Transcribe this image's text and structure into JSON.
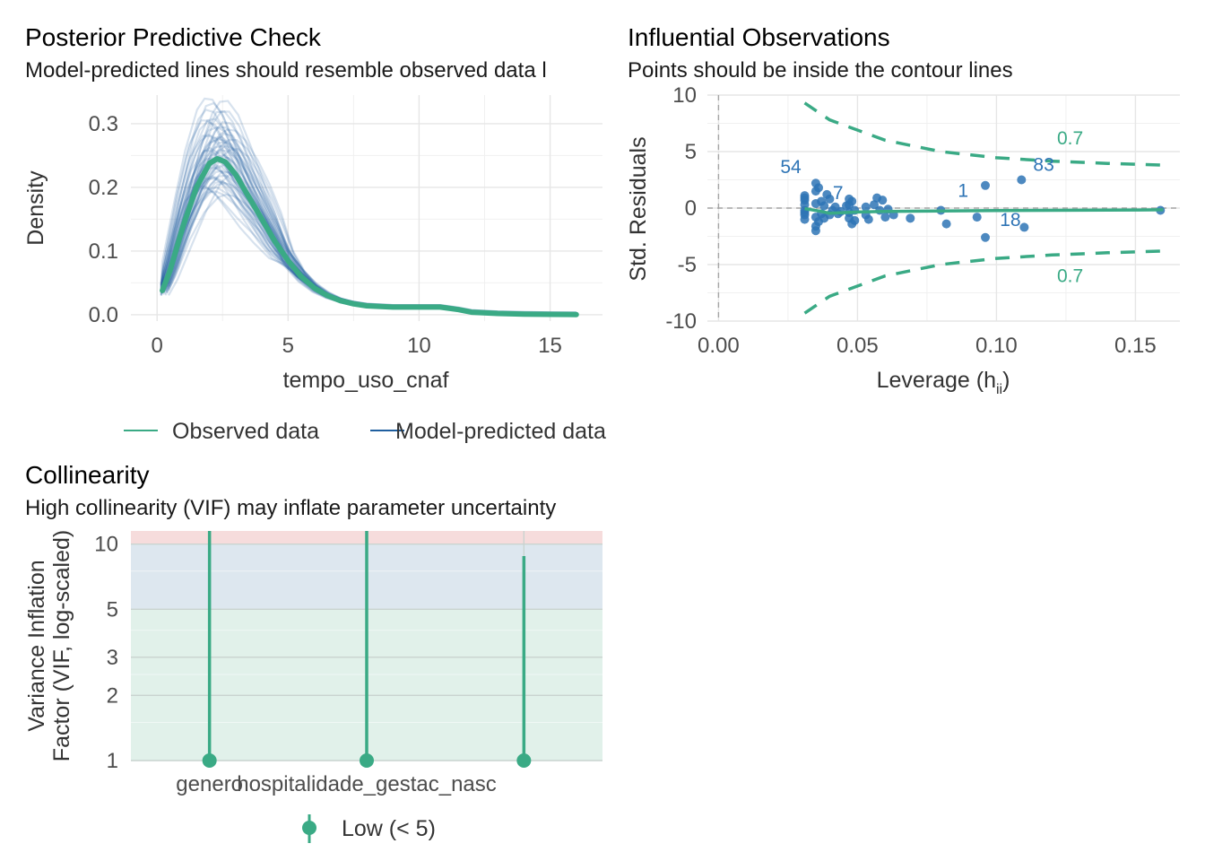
{
  "colors": {
    "observed": "#3aaa85",
    "predicted": "#1f5f9f",
    "point": "#2e74b5",
    "contour": "#3aaa85",
    "zone_high": "#f6dcdc",
    "zone_moderate": "#dde7ef",
    "zone_low": "#e1f1ea"
  },
  "panels": {
    "ppc": {
      "title": "Posterior Predictive Check",
      "subtitle": "Model-predicted lines should resemble observed data l"
    },
    "influence": {
      "title": "Influential Observations",
      "subtitle": "Points should be inside the contour lines"
    },
    "collinearity": {
      "title": "Collinearity",
      "subtitle": "High collinearity (VIF) may inflate parameter uncertainty"
    }
  },
  "chart_data": [
    {
      "type": "line",
      "xlabel": "tempo_uso_cnaf",
      "ylabel": "Density",
      "xlim": [
        -1,
        17
      ],
      "ylim": [
        -0.01,
        0.345
      ],
      "x_ticks": [
        0,
        5,
        10,
        15
      ],
      "x_tick_labels": [
        "0",
        "5",
        "10",
        "15"
      ],
      "y_ticks": [
        0.0,
        0.1,
        0.2,
        0.3
      ],
      "y_tick_labels": [
        "0.0",
        "0.1",
        "0.2",
        "0.3"
      ],
      "legend": [
        "Observed data",
        "Model-predicted data"
      ],
      "legend_position": "bottom",
      "observed": {
        "x": [
          0.2,
          0.5,
          1.0,
          1.5,
          2.0,
          2.3,
          2.6,
          3.0,
          3.5,
          4.0,
          4.5,
          5.0,
          5.5,
          6.0,
          6.5,
          7.0,
          7.5,
          8.0,
          9.0,
          10.0,
          10.8,
          11.5,
          12.0,
          13.0,
          14.0,
          15.0,
          16.0
        ],
        "y": [
          0.038,
          0.07,
          0.14,
          0.2,
          0.238,
          0.245,
          0.24,
          0.22,
          0.185,
          0.15,
          0.115,
          0.085,
          0.06,
          0.042,
          0.03,
          0.022,
          0.017,
          0.014,
          0.012,
          0.012,
          0.012,
          0.008,
          0.004,
          0.002,
          0.001,
          0.0005,
          0.0003
        ]
      },
      "predicted_draws": 50
    },
    {
      "type": "scatter",
      "xlabel": "Leverage (h",
      "xlabel_sub": "ii",
      "xlabel_close": ")",
      "ylabel": "Std. Residuals",
      "xlim": [
        -0.004,
        0.166
      ],
      "ylim": [
        -10,
        10
      ],
      "x_ticks": [
        0.0,
        0.05,
        0.1,
        0.15
      ],
      "x_tick_labels": [
        "0.00",
        "0.05",
        "0.10",
        "0.15"
      ],
      "y_ticks": [
        -10,
        -5,
        0,
        5,
        10
      ],
      "y_tick_labels": [
        "-10",
        "-5",
        "0",
        "5",
        "10"
      ],
      "contour_label": "0.7",
      "contour_upper": {
        "x": [
          0.031,
          0.04,
          0.06,
          0.08,
          0.1,
          0.12,
          0.14,
          0.16
        ],
        "y": [
          9.3,
          7.8,
          6.0,
          5.0,
          4.45,
          4.15,
          3.95,
          3.8
        ]
      },
      "contour_lower": {
        "x": [
          0.031,
          0.04,
          0.06,
          0.08,
          0.1,
          0.12,
          0.14,
          0.16
        ],
        "y": [
          -9.3,
          -7.8,
          -6.0,
          -5.0,
          -4.45,
          -4.15,
          -3.95,
          -3.8
        ]
      },
      "smooth": {
        "x": [
          0.031,
          0.036,
          0.04,
          0.05,
          0.06,
          0.08,
          0.1,
          0.12,
          0.14,
          0.16
        ],
        "y": [
          -0.05,
          -0.25,
          -0.45,
          -0.35,
          -0.3,
          -0.25,
          -0.22,
          -0.2,
          -0.18,
          -0.15
        ]
      },
      "points": [
        {
          "x": 0.031,
          "y": 1.1
        },
        {
          "x": 0.031,
          "y": 0.7
        },
        {
          "x": 0.031,
          "y": 0.3
        },
        {
          "x": 0.031,
          "y": -0.2
        },
        {
          "x": 0.031,
          "y": -0.6
        },
        {
          "x": 0.031,
          "y": -1.0
        },
        {
          "x": 0.031,
          "y": 0.9
        },
        {
          "x": 0.031,
          "y": -0.4
        },
        {
          "x": 0.035,
          "y": 2.2
        },
        {
          "x": 0.035,
          "y": 1.5
        },
        {
          "x": 0.035,
          "y": 0.4
        },
        {
          "x": 0.035,
          "y": -0.8
        },
        {
          "x": 0.035,
          "y": -1.6
        },
        {
          "x": 0.035,
          "y": -2.0
        },
        {
          "x": 0.036,
          "y": 1.8
        },
        {
          "x": 0.036,
          "y": -1.2
        },
        {
          "x": 0.037,
          "y": 0.6
        },
        {
          "x": 0.037,
          "y": -0.5
        },
        {
          "x": 0.038,
          "y": 0.2
        },
        {
          "x": 0.038,
          "y": -0.9
        },
        {
          "x": 0.039,
          "y": 1.2
        },
        {
          "x": 0.04,
          "y": 0.8
        },
        {
          "x": 0.04,
          "y": -0.6
        },
        {
          "x": 0.041,
          "y": -0.2
        },
        {
          "x": 0.042,
          "y": 0.1
        },
        {
          "x": 0.043,
          "y": -0.5
        },
        {
          "x": 0.044,
          "y": -0.3
        },
        {
          "x": 0.046,
          "y": 0.2
        },
        {
          "x": 0.047,
          "y": 0.8
        },
        {
          "x": 0.047,
          "y": 0.3
        },
        {
          "x": 0.047,
          "y": -0.4
        },
        {
          "x": 0.047,
          "y": -0.9
        },
        {
          "x": 0.048,
          "y": -1.4
        },
        {
          "x": 0.048,
          "y": 0.6
        },
        {
          "x": 0.049,
          "y": -0.2
        },
        {
          "x": 0.049,
          "y": -1.1
        },
        {
          "x": 0.053,
          "y": 0.1
        },
        {
          "x": 0.053,
          "y": -0.6
        },
        {
          "x": 0.054,
          "y": -1.0
        },
        {
          "x": 0.056,
          "y": 0.3
        },
        {
          "x": 0.057,
          "y": 0.9
        },
        {
          "x": 0.058,
          "y": -0.2
        },
        {
          "x": 0.059,
          "y": 0.7
        },
        {
          "x": 0.06,
          "y": -0.8
        },
        {
          "x": 0.061,
          "y": -0.1
        },
        {
          "x": 0.063,
          "y": -0.6
        },
        {
          "x": 0.069,
          "y": -0.9
        },
        {
          "x": 0.08,
          "y": -0.2
        },
        {
          "x": 0.082,
          "y": -1.4
        },
        {
          "x": 0.093,
          "y": -0.8
        },
        {
          "x": 0.096,
          "y": 2.0
        },
        {
          "x": 0.096,
          "y": -2.6
        },
        {
          "x": 0.109,
          "y": 2.5
        },
        {
          "x": 0.11,
          "y": -1.7
        },
        {
          "x": 0.159,
          "y": -0.2
        }
      ],
      "point_labels": [
        {
          "text": "54",
          "x": 0.026,
          "y": 3.1
        },
        {
          "text": "7",
          "x": 0.043,
          "y": 0.8
        },
        {
          "text": "1",
          "x": 0.088,
          "y": 1.0
        },
        {
          "text": "83",
          "x": 0.117,
          "y": 3.3
        },
        {
          "text": "18",
          "x": 0.105,
          "y": -1.6
        }
      ]
    },
    {
      "type": "bar",
      "categories": [
        "genero",
        "hospitalidade_gestac_nasc",
        ""
      ],
      "values": [
        12.0,
        12.0,
        8.8
      ],
      "xlabel": "",
      "ylabel_line1": "Variance Inflation",
      "ylabel_line2": "Factor (VIF, log-scaled)",
      "y_scale": "log",
      "ylim": [
        1,
        11.5
      ],
      "y_ticks": [
        1,
        2,
        3,
        5,
        10
      ],
      "y_tick_labels": [
        "1",
        "2",
        "3",
        "5",
        "10"
      ],
      "zones": {
        "low": [
          1,
          5
        ],
        "moderate": [
          5,
          10
        ],
        "high": [
          10,
          11.5
        ]
      },
      "legend": [
        "Low (< 5)"
      ],
      "legend_position": "bottom"
    }
  ]
}
